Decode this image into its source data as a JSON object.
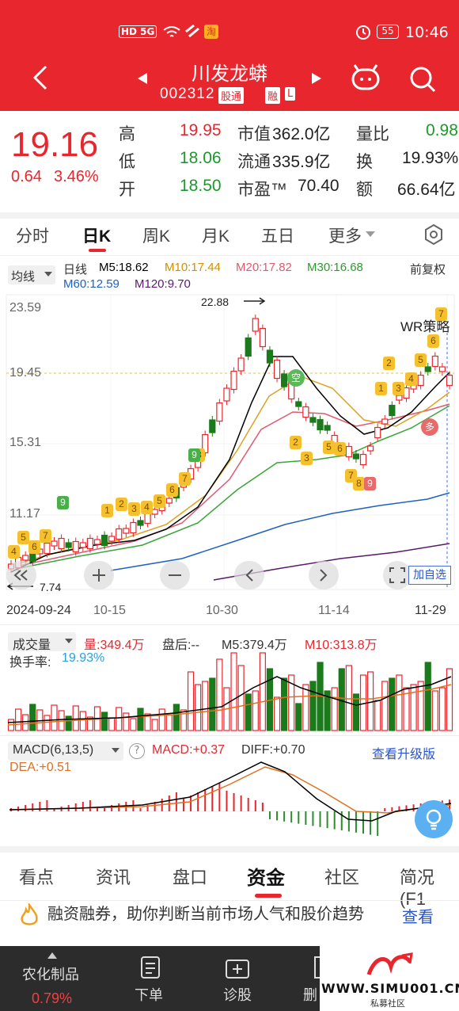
{
  "status_bar": {
    "signal": "HD 5G",
    "app_badge": "淘",
    "battery": "55",
    "time": "10:46"
  },
  "header": {
    "title": "川发龙蟒",
    "code": "002312",
    "badge_market": "股通",
    "badge_margin": "融",
    "badge_l": "L"
  },
  "quote": {
    "price": "19.16",
    "change": "0.64",
    "change_pct": "3.46%",
    "rows": [
      {
        "l1": "高",
        "v1": "19.95",
        "l2": "市值",
        "v2": "362.0亿",
        "l3": "量比",
        "v3": "0.98"
      },
      {
        "l1": "低",
        "v1": "18.06",
        "l2": "流通",
        "v2": "335.9亿",
        "l3": "换",
        "v3": "19.93%"
      },
      {
        "l1": "开",
        "v1": "18.50",
        "l2": "市盈™",
        "v2": "70.40",
        "l3": "额",
        "v3": "66.64亿"
      }
    ]
  },
  "tabs": [
    "分时",
    "日K",
    "周K",
    "月K",
    "五日",
    "更多"
  ],
  "ma_legend": {
    "selector": "均线",
    "period": "日线",
    "m5": "M5:18.62",
    "m10": "M10:17.44",
    "m20": "M20:17.82",
    "m30": "M30:16.68",
    "m60": "M60:12.59",
    "m120": "M120:9.70",
    "adjust": "前复权"
  },
  "price_axis": [
    "23.59",
    "19.45",
    "15.31",
    "11.17"
  ],
  "annotations": {
    "high": "22.88",
    "low": "7.74",
    "strategy": "WR策略",
    "add_watch": "加自选",
    "kong": "空",
    "duo": "多"
  },
  "date_axis": [
    "2024-09-24",
    "10-15",
    "10-30",
    "11-14",
    "11-29"
  ],
  "volume": {
    "selector": "成交量",
    "vol": "量:349.4万",
    "after": "盘后:--",
    "m5": "M5:379.4万",
    "m10": "M10:313.8万",
    "turnover_label": "换手率:",
    "turnover": "19.93%"
  },
  "macd": {
    "selector": "MACD(6,13,5)",
    "help": "?",
    "macd": "MACD:+0.37",
    "diff": "DIFF:+0.70",
    "upgrade": "查看升级版",
    "dea": "DEA:+0.51"
  },
  "bottom_tabs": [
    "看点",
    "资讯",
    "盘口",
    "资金",
    "社区",
    "简况(F1"
  ],
  "banner": {
    "text": "融资融券，助你判断当前市场人气和股价趋势",
    "link": "查看"
  },
  "bottom_nav": {
    "sector": "农化制品",
    "sector_pct": "0.79%",
    "order": "下单",
    "diagnose": "诊股",
    "delete": "删"
  },
  "watermark": {
    "url": "WWW.SIMU001.CN",
    "sub": "私募社区"
  },
  "colors": {
    "red": "#e8262e",
    "green": "#1b7a1b",
    "ma5": "#000000",
    "ma10": "#e0a020",
    "ma20": "#e05a70",
    "ma30": "#3aa63a",
    "ma60": "#2060c0",
    "ma120": "#5a1a6a"
  },
  "chart_data": {
    "type": "candlestick",
    "x_labels": [
      "2024-09-24",
      "10-15",
      "10-30",
      "11-14",
      "11-29"
    ],
    "ylim": [
      7.74,
      23.59
    ],
    "y_ticks": [
      23.59,
      19.45,
      15.31,
      11.17
    ],
    "last_close": 19.16,
    "period_high": 22.88,
    "period_low": 7.74
  }
}
